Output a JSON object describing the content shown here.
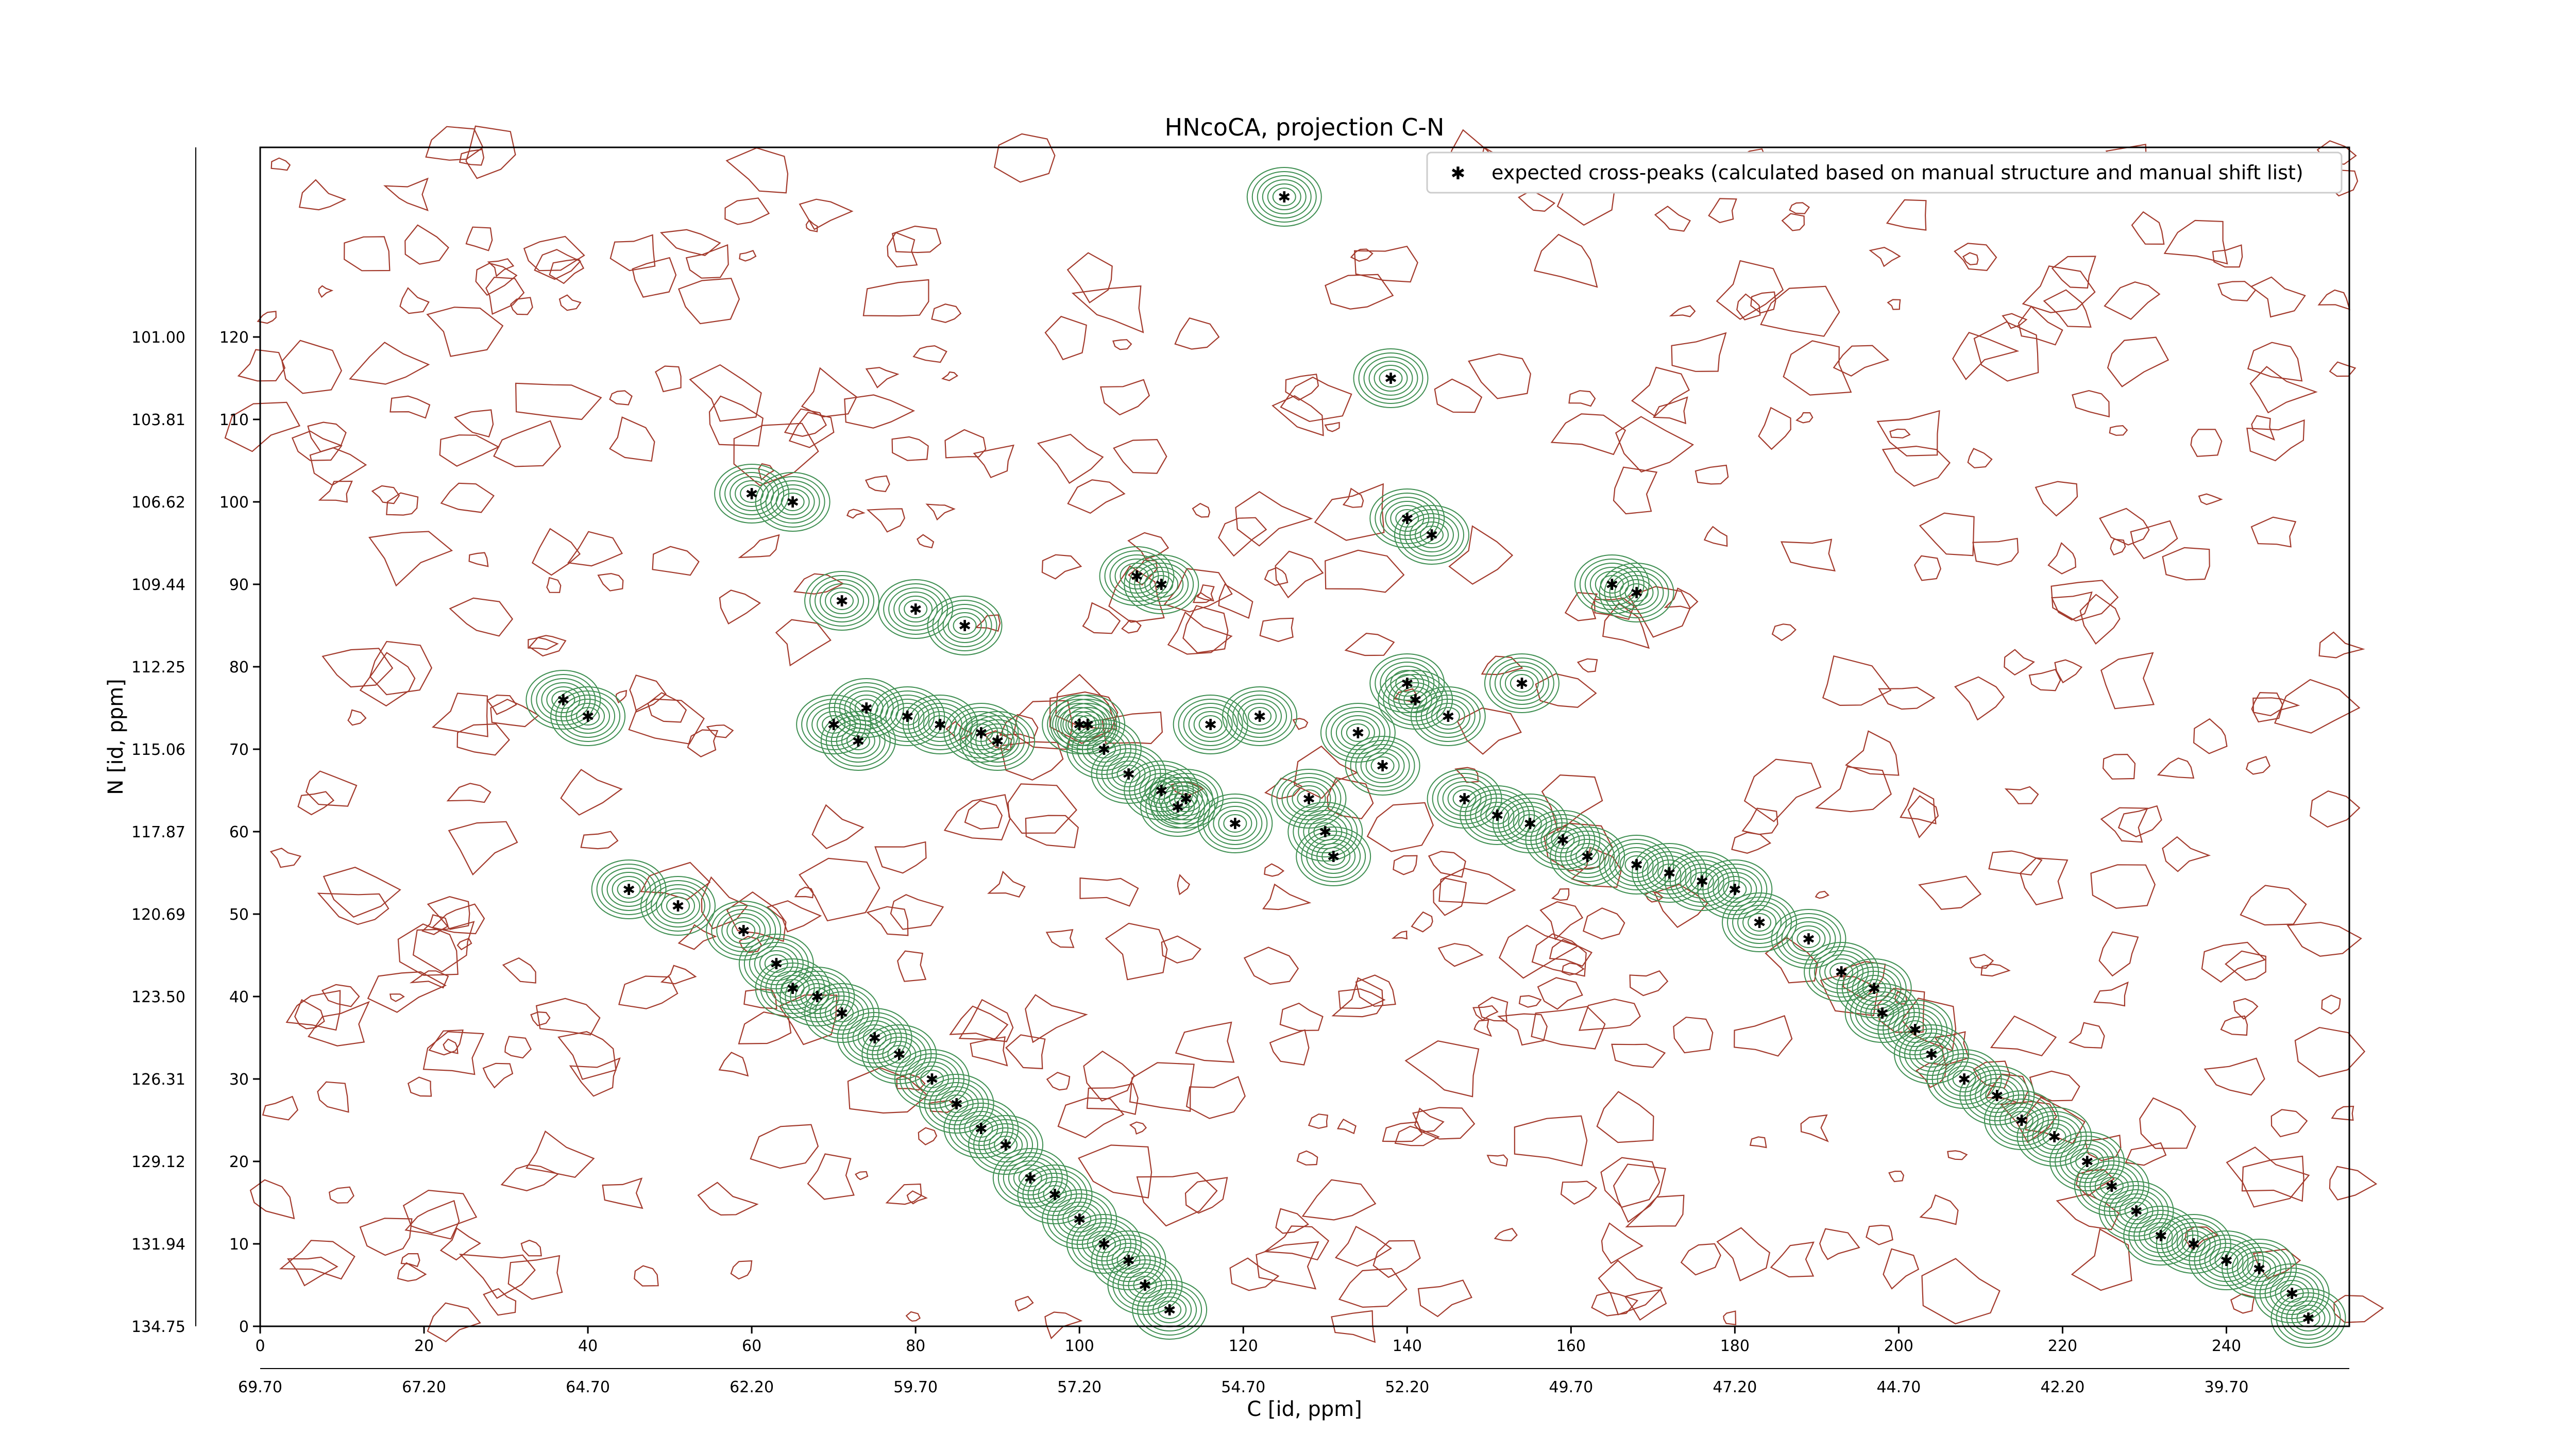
{
  "chart_data": {
    "type": "scatter",
    "title": "HNcoCA, projection C-N",
    "xlabel": "C [id, ppm]",
    "ylabel": "N [id, ppm]",
    "xlim": [
      0,
      255
    ],
    "ylim": [
      0,
      143
    ],
    "x_ticks": [
      0,
      20,
      40,
      60,
      80,
      100,
      120,
      140,
      160,
      180,
      200,
      220,
      240
    ],
    "y_ticks": [
      0,
      10,
      20,
      30,
      40,
      50,
      60,
      70,
      80,
      90,
      100,
      110,
      120
    ],
    "x_ppm_tick_labels": [
      "69.70",
      "67.20",
      "64.70",
      "62.20",
      "59.70",
      "57.20",
      "54.70",
      "52.20",
      "49.70",
      "47.20",
      "44.70",
      "42.20",
      "39.70"
    ],
    "y_ppm_tick_labels": [
      "134.75",
      "131.94",
      "129.12",
      "126.31",
      "123.50",
      "120.69",
      "117.87",
      "115.06",
      "112.25",
      "109.44",
      "106.62",
      "103.81",
      "101.00"
    ],
    "legend": {
      "label": "expected cross-peaks (calculated based on manual structure and manual shift list)",
      "placement": "top-right"
    },
    "series": [
      {
        "name": "expected cross-peaks (calculated based on manual structure and manual shift list)",
        "color": "#0000ff",
        "marker": "x",
        "points": [
          [
            125.0,
            137.0
          ],
          [
            138.0,
            115.0
          ],
          [
            60.0,
            101.0
          ],
          [
            65.0,
            100.0
          ],
          [
            140.0,
            98.0
          ],
          [
            143.0,
            96.0
          ],
          [
            107.0,
            91.0
          ],
          [
            110.0,
            90.0
          ],
          [
            165.0,
            90.0
          ],
          [
            168.0,
            89.0
          ],
          [
            71.0,
            88.0
          ],
          [
            80.0,
            87.0
          ],
          [
            86.0,
            85.0
          ],
          [
            140.0,
            78.0
          ],
          [
            154.0,
            78.0
          ],
          [
            70.0,
            73.0
          ],
          [
            73.0,
            71.0
          ],
          [
            83.0,
            73.0
          ],
          [
            90.0,
            71.0
          ],
          [
            103.0,
            70.0
          ],
          [
            106.0,
            67.0
          ],
          [
            110.0,
            65.0
          ],
          [
            113.0,
            64.0
          ],
          [
            112.0,
            63.0
          ],
          [
            119.0,
            61.0
          ],
          [
            128.0,
            64.0
          ],
          [
            130.0,
            60.0
          ],
          [
            131.0,
            57.0
          ],
          [
            37.0,
            76.0
          ],
          [
            40.0,
            74.0
          ],
          [
            74.0,
            75.0
          ],
          [
            79.0,
            74.0
          ],
          [
            88.0,
            72.0
          ],
          [
            100.0,
            73.0
          ],
          [
            101.0,
            73.0
          ],
          [
            116.0,
            73.0
          ],
          [
            122.0,
            74.0
          ],
          [
            134.0,
            72.0
          ],
          [
            137.0,
            68.0
          ],
          [
            141.0,
            76.0
          ],
          [
            145.0,
            74.0
          ],
          [
            147.0,
            64.0
          ],
          [
            151.0,
            62.0
          ],
          [
            155.0,
            61.0
          ],
          [
            159.0,
            59.0
          ],
          [
            162.0,
            57.0
          ],
          [
            168.0,
            56.0
          ],
          [
            172.0,
            55.0
          ],
          [
            176.0,
            54.0
          ],
          [
            180.0,
            53.0
          ],
          [
            183.0,
            49.0
          ],
          [
            189.0,
            47.0
          ],
          [
            193.0,
            43.0
          ],
          [
            197.0,
            41.0
          ],
          [
            198.0,
            38.0
          ],
          [
            202.0,
            36.0
          ],
          [
            204.0,
            33.0
          ],
          [
            208.0,
            30.0
          ],
          [
            212.0,
            28.0
          ],
          [
            215.0,
            25.0
          ],
          [
            219.0,
            23.0
          ],
          [
            223.0,
            20.0
          ],
          [
            226.0,
            17.0
          ],
          [
            229.0,
            14.0
          ],
          [
            232.0,
            11.0
          ],
          [
            236.0,
            10.0
          ],
          [
            240.0,
            8.0
          ],
          [
            244.0,
            7.0
          ],
          [
            248.0,
            4.0
          ],
          [
            250.0,
            1.0
          ],
          [
            45.0,
            53.0
          ],
          [
            51.0,
            51.0
          ],
          [
            59.0,
            48.0
          ],
          [
            63.0,
            44.0
          ],
          [
            65.0,
            41.0
          ],
          [
            68.0,
            40.0
          ],
          [
            71.0,
            38.0
          ],
          [
            75.0,
            35.0
          ],
          [
            78.0,
            33.0
          ],
          [
            82.0,
            30.0
          ],
          [
            85.0,
            27.0
          ],
          [
            88.0,
            24.0
          ],
          [
            91.0,
            22.0
          ],
          [
            94.0,
            18.0
          ],
          [
            97.0,
            16.0
          ],
          [
            100.0,
            13.0
          ],
          [
            103.0,
            10.0
          ],
          [
            106.0,
            8.0
          ],
          [
            108.0,
            5.0
          ],
          [
            111.0,
            2.0
          ]
        ]
      }
    ],
    "grid": false
  }
}
